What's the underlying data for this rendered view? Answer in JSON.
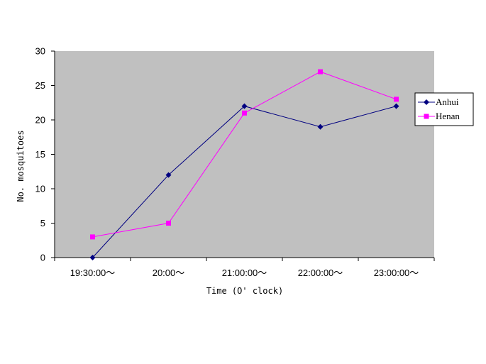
{
  "chart_data": {
    "type": "line",
    "categories": [
      "19:30:00～",
      "20:00～",
      "21:00:00～",
      "22:00:00～",
      "23:00:00～"
    ],
    "series": [
      {
        "name": "Anhui",
        "values": [
          0,
          12,
          22,
          19,
          22
        ],
        "color": "#000080",
        "marker": "diamond"
      },
      {
        "name": "Henan",
        "values": [
          3,
          5,
          21,
          27,
          23
        ],
        "color": "#ff00ff",
        "marker": "square"
      }
    ],
    "title": "",
    "xlabel": "Time (O' clock)",
    "ylabel": "No. mosquitoes",
    "ylim": [
      0,
      30
    ],
    "yticks": [
      0,
      5,
      10,
      15,
      20,
      25,
      30
    ],
    "grid": false,
    "plot_background": "#c0c0c0",
    "legend_position": "right"
  }
}
